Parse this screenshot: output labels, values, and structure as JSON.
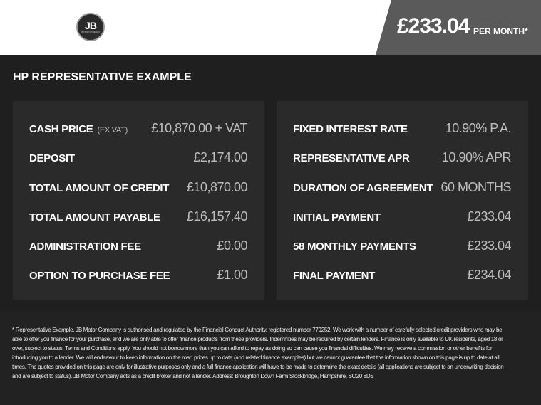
{
  "header": {
    "logo_text": "JB",
    "logo_subtext": "MOTOR COMPANY",
    "price": "£233.04",
    "per_month": "PER MONTH*"
  },
  "section_title": "HP REPRESENTATIVE EXAMPLE",
  "left_rows": [
    {
      "label": "CASH PRICE",
      "note": "(EX VAT)",
      "value": "£10,870.00 + VAT"
    },
    {
      "label": "DEPOSIT",
      "value": "£2,174.00"
    },
    {
      "label": "TOTAL AMOUNT OF CREDIT",
      "value": "£10,870.00"
    },
    {
      "label": "TOTAL AMOUNT PAYABLE",
      "value": "£16,157.40"
    },
    {
      "label": "ADMINISTRATION FEE",
      "value": "£0.00"
    },
    {
      "label": "OPTION TO PURCHASE FEE",
      "value": "£1.00"
    }
  ],
  "right_rows": [
    {
      "label": "FIXED INTEREST RATE",
      "value": "10.90% P.A."
    },
    {
      "label": "REPRESENTATIVE APR",
      "value": "10.90% APR"
    },
    {
      "label": "DURATION OF AGREEMENT",
      "value": "60 MONTHS"
    },
    {
      "label": "INITIAL PAYMENT",
      "value": "£233.04"
    },
    {
      "label": "58 MONTHLY PAYMENTS",
      "value": "£233.04"
    },
    {
      "label": "FINAL PAYMENT",
      "value": "£234.04"
    }
  ],
  "disclaimer": "* Representative Example. JB Motor Company is authorised and regulated by the Financial Conduct Authority, registered number 779252. We work with a number of carefully selected credit providers who may be able to offer you finance for your purchase, and we are only able to offer finance products from these providers. Indemnities may be required by certain lenders. Finance is only available to UK residents, aged 18 or over, subject to status. Terms and Conditions apply. You should not borrow more than you can afford to repay as doing so can cause you financial difficulties. We may receive a commission or other benefits for introducing you to a lender. We will endeavour to keep information on the road prices up to date (and related finance examples) but we cannot guarantee that the information shown on this page is up to date at all times. The quotes provided on this page are only for illustrative purposes only and a full finance application will have to be made to determine the exact details (all applications are subject to an underwriting decision and are subject to status). JB Motor Company acts as a credit broker and not a lender. Address: Broughton Down Farm Stockbridge, Hampshire, SO20 8DS"
}
